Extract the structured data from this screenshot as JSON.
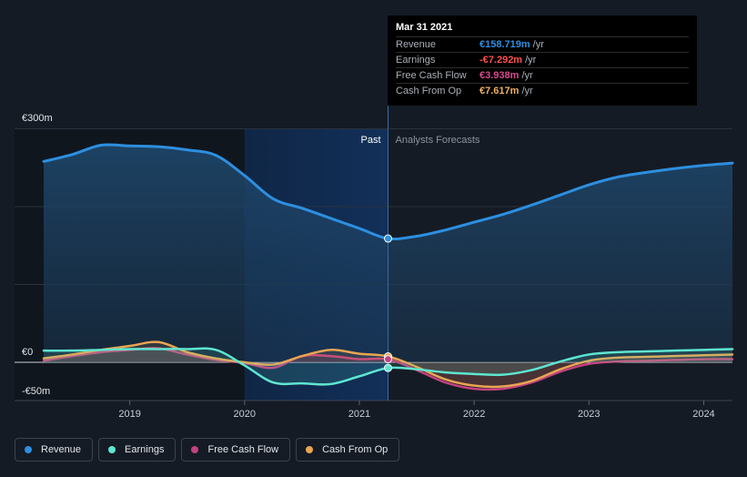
{
  "chart_data": {
    "type": "line",
    "y_tick_labels": [
      "€300m",
      "€0",
      "-€50m"
    ],
    "ylim": [
      -50,
      300
    ],
    "x_tick_labels": [
      "2019",
      "2020",
      "2021",
      "2022",
      "2023",
      "2024"
    ],
    "x_tick_years": [
      2019,
      2020,
      2021,
      2022,
      2023,
      2024
    ],
    "xlim": [
      2018.25,
      2024.25
    ],
    "past_label": "Past",
    "forecast_label": "Analysts Forecasts",
    "divider_x": 2021.25,
    "highlight_range": [
      2020.0,
      2021.25
    ],
    "grid": true,
    "legend_position": "bottom-left",
    "series": [
      {
        "name": "Revenue",
        "color": "#2d8fe0",
        "fill": true,
        "x": [
          2018.25,
          2018.5,
          2018.75,
          2019.0,
          2019.25,
          2019.5,
          2019.75,
          2020.0,
          2020.25,
          2020.5,
          2020.75,
          2021.0,
          2021.25,
          2021.5,
          2021.75,
          2022.0,
          2022.25,
          2022.5,
          2022.75,
          2023.0,
          2023.25,
          2023.5,
          2023.75,
          2024.0,
          2024.25
        ],
        "values": [
          258,
          267,
          279,
          278,
          277,
          273,
          266,
          240,
          210,
          198,
          185,
          172,
          159,
          162,
          170,
          180,
          190,
          202,
          215,
          228,
          238,
          244,
          249,
          253,
          256
        ]
      },
      {
        "name": "Earnings",
        "color": "#5ee6d0",
        "fill": false,
        "x": [
          2018.25,
          2018.5,
          2018.75,
          2019.0,
          2019.25,
          2019.5,
          2019.75,
          2020.0,
          2020.25,
          2020.5,
          2020.75,
          2021.0,
          2021.25,
          2021.5,
          2021.75,
          2022.0,
          2022.25,
          2022.5,
          2022.75,
          2023.0,
          2023.25,
          2023.5,
          2023.75,
          2024.0,
          2024.25
        ],
        "values": [
          15,
          15,
          16,
          17,
          17,
          17,
          16,
          -4,
          -26,
          -27,
          -28,
          -18,
          -7.3,
          -9,
          -13,
          -15,
          -16,
          -10,
          1,
          10,
          13,
          14,
          15,
          16,
          17
        ]
      },
      {
        "name": "Free Cash Flow",
        "color": "#c2427f",
        "fill": false,
        "x": [
          2018.25,
          2018.5,
          2018.75,
          2019.0,
          2019.25,
          2019.5,
          2019.75,
          2020.0,
          2020.25,
          2020.5,
          2020.75,
          2021.0,
          2021.25,
          2021.5,
          2021.75,
          2022.0,
          2022.25,
          2022.5,
          2022.75,
          2023.0,
          2023.25,
          2023.5,
          2023.75,
          2024.0,
          2024.25
        ],
        "values": [
          2,
          8,
          13,
          16,
          18,
          10,
          3,
          -1,
          -7,
          8,
          8,
          4,
          3.9,
          -10,
          -26,
          -34,
          -34,
          -26,
          -12,
          -2,
          1,
          2,
          3,
          4,
          4
        ]
      },
      {
        "name": "Cash From Op",
        "color": "#e8a552",
        "fill": false,
        "x": [
          2018.25,
          2018.5,
          2018.75,
          2019.0,
          2019.25,
          2019.5,
          2019.75,
          2020.0,
          2020.25,
          2020.5,
          2020.75,
          2021.0,
          2021.25,
          2021.5,
          2021.75,
          2022.0,
          2022.25,
          2022.5,
          2022.75,
          2023.0,
          2023.25,
          2023.5,
          2023.75,
          2024.0,
          2024.25
        ],
        "values": [
          5,
          10,
          16,
          21,
          26,
          13,
          5,
          0,
          -3,
          8,
          16,
          11,
          7.6,
          -6,
          -22,
          -30,
          -31,
          -24,
          -9,
          2,
          6,
          7,
          8,
          9,
          10
        ]
      }
    ]
  },
  "tooltip": {
    "date": "Mar 31 2021",
    "rows": [
      {
        "label": "Revenue",
        "value": "€158.719m",
        "unit": "/yr",
        "color": "#2d8fe0"
      },
      {
        "label": "Earnings",
        "value": "-€7.292m",
        "unit": "/yr",
        "color": "#ff4d4d"
      },
      {
        "label": "Free Cash Flow",
        "value": "€3.938m",
        "unit": "/yr",
        "color": "#d94a8f"
      },
      {
        "label": "Cash From Op",
        "value": "€7.617m",
        "unit": "/yr",
        "color": "#f0b060"
      }
    ]
  },
  "legend": [
    {
      "label": "Revenue",
      "color": "#2d8fe0"
    },
    {
      "label": "Earnings",
      "color": "#5ee6d0"
    },
    {
      "label": "Free Cash Flow",
      "color": "#c2427f"
    },
    {
      "label": "Cash From Op",
      "color": "#e8a552"
    }
  ]
}
